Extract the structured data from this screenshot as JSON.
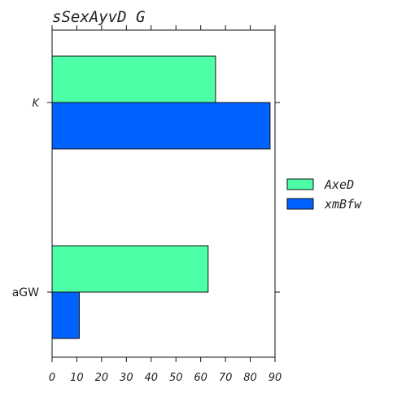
{
  "chart_data": {
    "type": "bar",
    "orientation": "horizontal",
    "title": "sSexAyvD G",
    "categories": [
      "K",
      "aGW"
    ],
    "series": [
      {
        "name": "AxeD",
        "values": [
          66,
          63
        ],
        "color": "#4dffa6"
      },
      {
        "name": "xmBfw",
        "values": [
          88,
          11
        ],
        "color": "#0062ff"
      }
    ],
    "xlim": [
      0,
      90
    ],
    "xticks": [
      "0",
      "10",
      "20",
      "30",
      "40",
      "50",
      "60",
      "70",
      "80",
      "90"
    ],
    "xlabel": "",
    "ylabel": "",
    "grid": false,
    "legend_position": "right"
  }
}
